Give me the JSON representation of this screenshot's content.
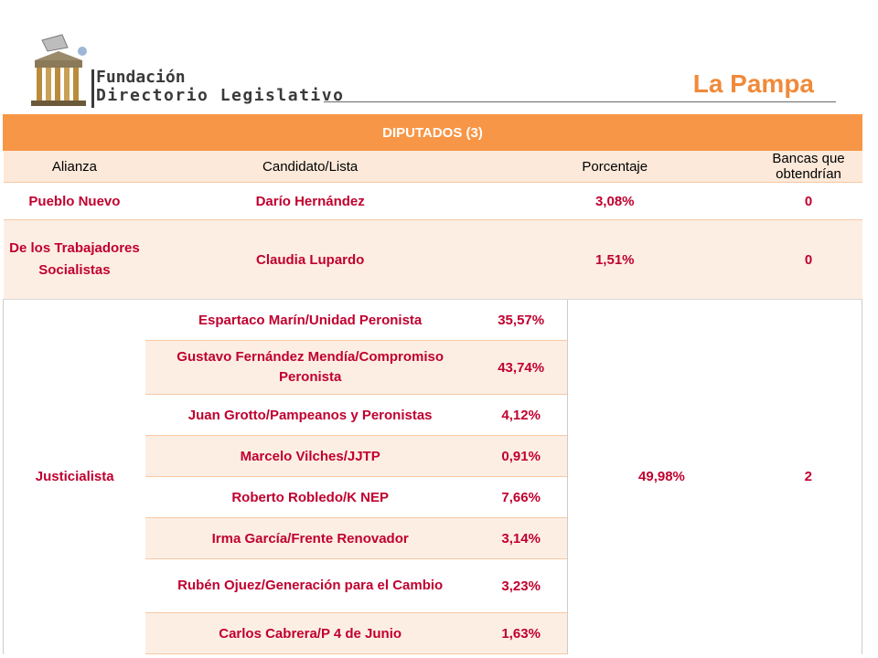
{
  "logo": {
    "line1": "Fundación",
    "line2": "Directorio Legislativo"
  },
  "region": "La Pampa",
  "table": {
    "title": "DIPUTADOS (3)",
    "columns": [
      "Alianza",
      "Candidato/Lista",
      "Porcentaje",
      "Bancas que obtendrían"
    ],
    "rows": [
      {
        "alianza": "Pueblo Nuevo",
        "candidato": "Darío Hernández",
        "porcentaje": "3,08%",
        "bancas": "0"
      },
      {
        "alianza": "De los Trabajadores Socialistas",
        "candidato": "Claudia Lupardo",
        "porcentaje": "1,51%",
        "bancas": "0"
      }
    ],
    "justicialista": {
      "alianza": "Justicialista",
      "total": "49,98%",
      "bancas": "2",
      "lists": [
        {
          "candidato": "Espartaco Marín/Unidad Peronista",
          "porcentaje": "35,57%"
        },
        {
          "candidato": "Gustavo Fernández Mendía/Compromiso Peronista",
          "porcentaje": "43,74%"
        },
        {
          "candidato": "Juan Grotto/Pampeanos y Peronistas",
          "porcentaje": "4,12%"
        },
        {
          "candidato": "Marcelo Vilches/JJTP",
          "porcentaje": "0,91%"
        },
        {
          "candidato": "Roberto Robledo/K NEP",
          "porcentaje": "7,66%"
        },
        {
          "candidato": "Irma García/Frente Renovador",
          "porcentaje": "3,14%"
        },
        {
          "candidato": "Rubén Ojuez/Generación para el Cambio",
          "porcentaje": "3,23%"
        },
        {
          "candidato": "Carlos Cabrera/P 4 de Junio",
          "porcentaje": "1,63%"
        }
      ]
    }
  }
}
